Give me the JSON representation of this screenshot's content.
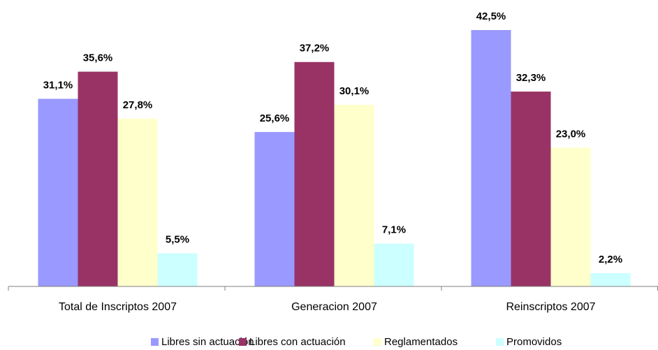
{
  "chart_data": {
    "type": "bar",
    "categories": [
      "Total de Inscriptos 2007",
      "Generacion 2007",
      "Reinscriptos 2007"
    ],
    "series": [
      {
        "name": "Libres sin actuación",
        "color": "#9999ff",
        "values": [
          31.1,
          25.6,
          42.5
        ],
        "value_labels": [
          "31,1%",
          "25,6%",
          "42,5%"
        ]
      },
      {
        "name": "Libres con actuación",
        "color": "#993366",
        "values": [
          35.6,
          37.2,
          32.3
        ],
        "value_labels": [
          "35,6%",
          "37,2%",
          "32,3%"
        ]
      },
      {
        "name": "Reglamentados",
        "color": "#ffffcc",
        "values": [
          27.8,
          30.1,
          23.0
        ],
        "value_labels": [
          "27,8%",
          "30,1%",
          "23,0%"
        ]
      },
      {
        "name": "Promovidos",
        "color": "#ccffff",
        "values": [
          5.5,
          7.1,
          2.2
        ],
        "value_labels": [
          "5,5%",
          "7,1%",
          "2,2%"
        ]
      }
    ]
  }
}
